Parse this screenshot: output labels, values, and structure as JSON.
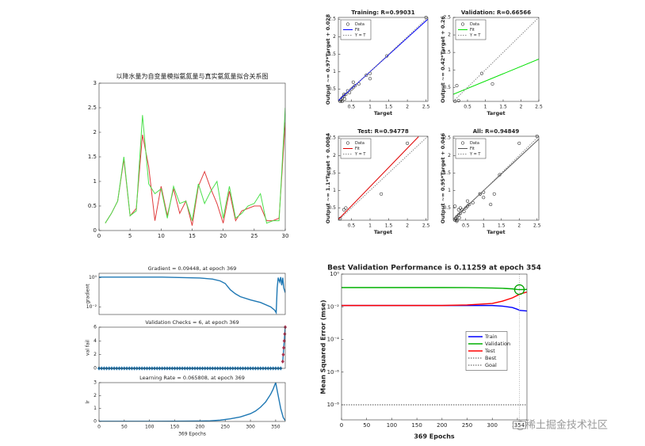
{
  "watermark": "@稀土掘金技术社区",
  "chart_data": [
    {
      "type": "line",
      "title": "以降水量为自变量模拟氨氮量与真实氨氮量拟合关系图",
      "x": [
        1,
        2,
        3,
        4,
        5,
        6,
        7,
        8,
        9,
        10,
        11,
        12,
        13,
        14,
        15,
        16,
        17,
        18,
        19,
        20,
        21,
        22,
        23,
        24,
        25,
        26,
        27,
        28,
        29,
        30
      ],
      "xlim": [
        0,
        30
      ],
      "xticks": [
        0,
        5,
        10,
        15,
        20,
        25,
        30
      ],
      "ylim": [
        0,
        3
      ],
      "yticks": [
        0,
        0.5,
        1,
        1.5,
        2,
        2.5,
        3
      ],
      "series": [
        {
          "color": "#e03c3c",
          "values": [
            0.15,
            0.35,
            0.6,
            1.45,
            0.3,
            0.45,
            1.95,
            1.3,
            0.2,
            0.9,
            0.3,
            0.85,
            0.35,
            0.6,
            0.1,
            0.9,
            1.2,
            0.85,
            0.55,
            0.15,
            0.8,
            0.2,
            0.4,
            0.45,
            0.5,
            0.5,
            0.2,
            0.2,
            0.25,
            2.2
          ]
        },
        {
          "color": "#4ce04c",
          "values": [
            0.15,
            0.35,
            0.6,
            1.5,
            0.3,
            0.4,
            2.35,
            0.95,
            0.75,
            0.85,
            0.25,
            0.9,
            0.55,
            0.6,
            0.2,
            0.95,
            0.55,
            0.8,
            1.0,
            0.25,
            0.9,
            0.25,
            0.35,
            0.5,
            0.55,
            0.75,
            0.15,
            0.2,
            0.2,
            2.5
          ]
        }
      ]
    },
    {
      "type": "scatter",
      "title": "Training: R=0.99031",
      "xlabel": "Target",
      "ylabel": "Output ~= 0.97*Target + 0.028",
      "xlim": [
        0.15,
        2.55
      ],
      "ylim": [
        0.15,
        2.55
      ],
      "xticks": [
        0.5,
        1,
        1.5,
        2,
        2.5
      ],
      "yticks": [
        0.5,
        1,
        1.5,
        2,
        2.5
      ],
      "legend": "upper left",
      "series": [
        {
          "name": "Data",
          "color": "#000000",
          "marker": "circle",
          "line": false,
          "x": [
            0.2,
            0.22,
            0.25,
            0.3,
            0.32,
            0.35,
            0.4,
            0.45,
            0.5,
            0.55,
            0.55,
            0.6,
            0.7,
            0.9,
            1.0,
            1.0,
            1.45,
            2.5,
            0.3,
            0.25
          ],
          "values": [
            0.15,
            0.2,
            0.25,
            0.3,
            0.22,
            0.35,
            0.45,
            0.4,
            0.5,
            0.55,
            0.7,
            0.6,
            0.65,
            0.9,
            0.95,
            0.8,
            1.45,
            2.55,
            0.35,
            0.15
          ]
        },
        {
          "name": "Fit",
          "color": "#0000ff",
          "x": [
            0.15,
            2.55
          ],
          "values": [
            0.1735,
            2.5015
          ]
        },
        {
          "name": "Y = T",
          "color": "#888888",
          "dash": true,
          "x": [
            0.15,
            2.55
          ],
          "values": [
            0.15,
            2.55
          ]
        }
      ]
    },
    {
      "type": "scatter",
      "title": "Validation: R=0.66566",
      "xlabel": "Target",
      "ylabel": "Output ~= 0.42*Target + 0.26",
      "xlim": [
        0.1,
        2.5
      ],
      "ylim": [
        0.1,
        2.5
      ],
      "xticks": [
        0.5,
        1,
        1.5,
        2,
        2.5
      ],
      "yticks": [
        0.5,
        1,
        1.5,
        2,
        2.5
      ],
      "legend": "upper left",
      "series": [
        {
          "name": "Data",
          "color": "#000000",
          "marker": "circle",
          "line": false,
          "x": [
            0.2,
            0.25,
            0.9,
            1.2,
            0.15
          ],
          "values": [
            0.55,
            0.12,
            0.9,
            0.6,
            0.1
          ]
        },
        {
          "name": "Fit",
          "color": "#00e000",
          "x": [
            0.1,
            2.5
          ],
          "values": [
            0.302,
            1.31
          ]
        },
        {
          "name": "Y = T",
          "color": "#888888",
          "dash": true,
          "x": [
            0.1,
            2.5
          ],
          "values": [
            0.1,
            2.5
          ]
        }
      ]
    },
    {
      "type": "scatter",
      "title": "Test: R=0.94778",
      "xlabel": "Target",
      "ylabel": "Output ~= 1.1*Target + 0.0084",
      "xlim": [
        0.15,
        2.55
      ],
      "ylim": [
        0.15,
        2.55
      ],
      "xticks": [
        0.5,
        1,
        1.5,
        2,
        2.5
      ],
      "yticks": [
        0.5,
        1,
        1.5,
        2,
        2.5
      ],
      "legend": "upper left",
      "series": [
        {
          "name": "Data",
          "color": "#000000",
          "marker": "circle",
          "line": false,
          "x": [
            0.2,
            0.3,
            0.35,
            1.3,
            2.0
          ],
          "values": [
            0.2,
            0.45,
            0.5,
            0.9,
            2.35
          ]
        },
        {
          "name": "Fit",
          "color": "#e00000",
          "x": [
            0.15,
            2.3
          ],
          "values": [
            0.1734,
            2.5384
          ]
        },
        {
          "name": "Y = T",
          "color": "#888888",
          "dash": true,
          "x": [
            0.15,
            2.55
          ],
          "values": [
            0.15,
            2.55
          ]
        }
      ]
    },
    {
      "type": "scatter",
      "title": "All: R=0.94849",
      "xlabel": "Target",
      "ylabel": "Output ~= 0.95*Target + 0.046",
      "xlim": [
        0.15,
        2.55
      ],
      "ylim": [
        0.15,
        2.55
      ],
      "xticks": [
        0.5,
        1,
        1.5,
        2,
        2.5
      ],
      "yticks": [
        0.5,
        1,
        1.5,
        2,
        2.5
      ],
      "legend": "upper left",
      "series": [
        {
          "name": "Data",
          "color": "#000000",
          "marker": "circle",
          "line": false,
          "x": [
            0.2,
            0.22,
            0.25,
            0.3,
            0.32,
            0.35,
            0.4,
            0.45,
            0.5,
            0.55,
            0.55,
            0.6,
            0.7,
            0.9,
            1.0,
            1.0,
            1.45,
            2.5,
            0.3,
            0.25,
            0.2,
            0.25,
            0.9,
            1.2,
            0.35,
            1.3,
            2.0
          ],
          "values": [
            0.15,
            0.2,
            0.25,
            0.3,
            0.22,
            0.35,
            0.45,
            0.4,
            0.5,
            0.55,
            0.7,
            0.6,
            0.65,
            0.9,
            0.95,
            0.8,
            1.45,
            2.55,
            0.45,
            0.15,
            0.55,
            0.12,
            0.9,
            0.6,
            0.5,
            0.9,
            2.35
          ]
        },
        {
          "name": "Fit",
          "color": "#555555",
          "x": [
            0.15,
            2.55
          ],
          "values": [
            0.1885,
            2.4685
          ]
        },
        {
          "name": "Y = T",
          "color": "#888888",
          "dash": true,
          "x": [
            0.15,
            2.55
          ],
          "values": [
            0.15,
            2.55
          ]
        }
      ]
    },
    {
      "type": "line",
      "title": "Gradient = 0.09448, at epoch 369",
      "ylabel": "gradient",
      "ylog": true,
      "xlim": [
        0,
        369
      ],
      "ylim": [
        0.003,
        2
      ],
      "yticks": [
        {
          "value": 1,
          "label": "10⁰"
        },
        {
          "value": 0.01,
          "label": "10⁻²"
        }
      ],
      "series": [
        {
          "color": "#1f78b4",
          "x": [
            0,
            25,
            50,
            75,
            100,
            125,
            150,
            175,
            200,
            225,
            240,
            250,
            260,
            270,
            280,
            300,
            320,
            340,
            348,
            351,
            353,
            355,
            358,
            360,
            362,
            364,
            366,
            369
          ],
          "values": [
            1.1,
            1.1,
            1.1,
            1.1,
            1.1,
            1.1,
            1.05,
            1.0,
            0.95,
            0.8,
            0.6,
            0.4,
            0.15,
            0.08,
            0.05,
            0.03,
            0.02,
            0.01,
            0.006,
            0.004,
            0.2,
            1.0,
            0.5,
            1.1,
            0.3,
            1.0,
            0.2,
            0.09448
          ]
        }
      ]
    },
    {
      "type": "line",
      "title": "Validation Checks = 6, at epoch 369",
      "ylabel": "val fail",
      "xlim": [
        0,
        369
      ],
      "ylim": [
        0,
        6
      ],
      "yticks": [
        0,
        2,
        4,
        6
      ],
      "series": [
        {
          "color": "#1f78b4",
          "marker": "diamond",
          "marker_color": "#1f78b4",
          "x": [
            0,
            5,
            10,
            15,
            20,
            25,
            30,
            35,
            40,
            45,
            50,
            55,
            60,
            65,
            70,
            75,
            80,
            85,
            90,
            95,
            100,
            105,
            110,
            115,
            120,
            125,
            130,
            135,
            140,
            145,
            150,
            155,
            160,
            165,
            170,
            175,
            180,
            185,
            190,
            195,
            200,
            205,
            210,
            215,
            220,
            225,
            230,
            235,
            240,
            245,
            250,
            255,
            260,
            265,
            270,
            275,
            280,
            285,
            290,
            295,
            300,
            305,
            310,
            315,
            320,
            325,
            330,
            335,
            340,
            345,
            350,
            355,
            360
          ],
          "values": [
            0,
            0,
            0,
            0,
            0,
            0,
            0,
            0,
            0,
            0,
            0,
            0,
            0,
            0,
            0,
            0,
            0,
            0,
            0,
            0,
            0,
            0,
            0,
            0,
            0,
            0,
            0,
            0,
            0,
            0,
            0,
            0,
            0,
            0,
            0,
            0,
            0,
            0,
            0,
            0,
            0,
            0,
            0,
            0,
            0,
            0,
            0,
            0,
            0,
            0,
            0,
            0,
            0,
            0,
            0,
            0,
            0,
            0,
            0,
            0,
            0,
            0,
            0,
            0,
            0,
            0,
            0,
            0,
            0,
            0,
            0,
            0,
            0
          ]
        },
        {
          "color": "#1f78b4",
          "marker": "diamond",
          "marker_color": "#a8304e",
          "x": [
            364,
            365,
            366,
            367,
            368,
            369
          ],
          "values": [
            1,
            2,
            3,
            4,
            5,
            6
          ]
        }
      ]
    },
    {
      "type": "line",
      "title": "Learning Rate = 0.065808, at epoch 369",
      "ylabel": "lr",
      "xlabel": "369 Epochs",
      "xlim": [
        0,
        369
      ],
      "xticks": [
        0,
        50,
        100,
        150,
        200,
        250,
        300,
        350
      ],
      "ylim": [
        0,
        3
      ],
      "yticks": [
        0,
        1,
        2,
        3
      ],
      "series": [
        {
          "color": "#1f78b4",
          "x": [
            0,
            50,
            100,
            150,
            200,
            220,
            240,
            260,
            280,
            300,
            310,
            320,
            330,
            340,
            345,
            350,
            355,
            360,
            365,
            369
          ],
          "values": [
            0.01,
            0.01,
            0.01,
            0.02,
            0.03,
            0.05,
            0.1,
            0.2,
            0.35,
            0.6,
            0.8,
            1.1,
            1.5,
            2.1,
            2.5,
            3.0,
            2.0,
            1.0,
            0.3,
            0.065808
          ]
        }
      ]
    },
    {
      "type": "line",
      "title": "Best Validation Performance is 0.11259 at epoch 354",
      "ylabel": "Mean Squared Error  (mse)",
      "xlabel": "369 Epochs",
      "ylog": true,
      "xlim": [
        0,
        369
      ],
      "xticks": [
        0,
        50,
        100,
        150,
        200,
        250,
        300,
        350
      ],
      "ylim": [
        1.2e-09,
        1
      ],
      "yticks": [
        {
          "value": 1,
          "label": "10⁰"
        },
        {
          "value": 0.01,
          "label": "10⁻²"
        },
        {
          "value": 0.0001,
          "label": "10⁻⁴"
        },
        {
          "value": 1e-06,
          "label": "10⁻⁶"
        },
        {
          "value": 1e-08,
          "label": "10⁻⁸"
        }
      ],
      "legend": "center right",
      "series": [
        {
          "name": "Train",
          "color": "#0000ff",
          "x": [
            0,
            50,
            100,
            150,
            200,
            250,
            300,
            320,
            340,
            350,
            355,
            369
          ],
          "values": [
            0.012,
            0.012,
            0.012,
            0.012,
            0.012,
            0.012,
            0.012,
            0.011,
            0.009,
            0.007,
            0.006,
            0.0055
          ]
        },
        {
          "name": "Validation",
          "color": "#00b000",
          "x": [
            0,
            50,
            100,
            150,
            200,
            250,
            300,
            320,
            340,
            350,
            355,
            369
          ],
          "values": [
            0.15,
            0.15,
            0.15,
            0.15,
            0.15,
            0.148,
            0.14,
            0.135,
            0.125,
            0.114,
            0.1126,
            0.115
          ]
        },
        {
          "name": "Test",
          "color": "#ff0000",
          "x": [
            0,
            50,
            100,
            150,
            200,
            250,
            300,
            320,
            340,
            350,
            355,
            369
          ],
          "values": [
            0.012,
            0.012,
            0.012,
            0.012,
            0.012,
            0.013,
            0.016,
            0.022,
            0.035,
            0.05,
            0.06,
            0.08
          ]
        },
        {
          "name": "Best",
          "color": "#00a000",
          "marker": "ring",
          "line": false,
          "guide": true,
          "dash": true,
          "x": [
            354
          ],
          "values": [
            0.11259
          ]
        },
        {
          "name": "Goal",
          "color": "#888888",
          "dash": true,
          "x": [
            0,
            369
          ],
          "values": [
            1e-08,
            1e-08
          ]
        }
      ]
    }
  ]
}
